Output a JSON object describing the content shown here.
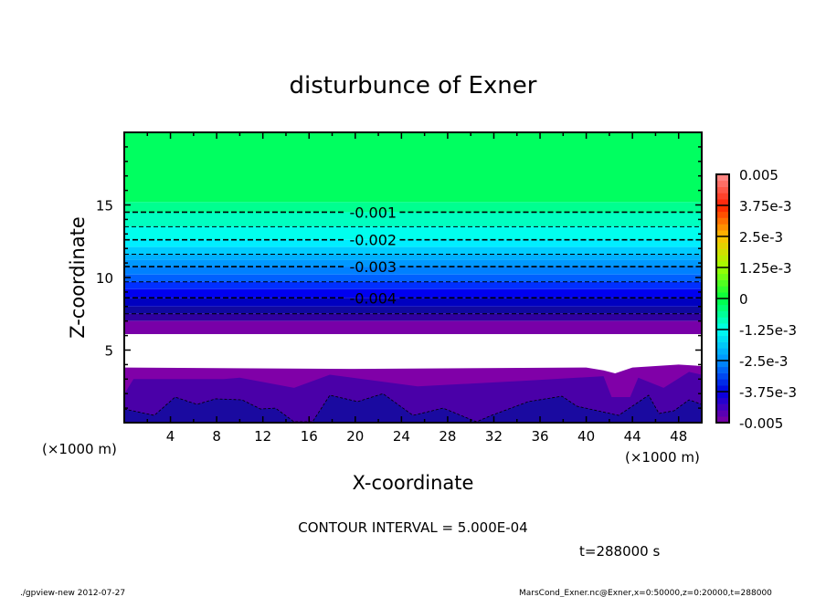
{
  "chart_data": {
    "type": "contour",
    "title": "disturbunce of Exner",
    "xlabel": "X-coordinate",
    "ylabel": "Z-coordinate",
    "x_unit_label": "(×1000 m)",
    "x_unit_label_right": "(×1000 m)",
    "xlim": [
      0,
      50
    ],
    "ylim": [
      0,
      20
    ],
    "x_ticks": [
      4,
      8,
      12,
      16,
      20,
      24,
      28,
      32,
      36,
      40,
      44,
      48
    ],
    "y_ticks": [
      5,
      10,
      15
    ],
    "contour_interval_text": "CONTOUR INTERVAL = 5.000E-04",
    "time_text": "t=288000 s",
    "colorbar": {
      "range": [
        -0.005,
        0.005
      ],
      "step": 0.00025,
      "labels": [
        "0.005",
        "3.75e-3",
        "2.5e-3",
        "1.25e-3",
        "0",
        "-1.25e-3",
        "-2.5e-3",
        "-3.75e-3",
        "-0.005"
      ],
      "label_values": [
        0.005,
        0.00375,
        0.0025,
        0.00125,
        0,
        -0.00125,
        -0.0025,
        -0.00375,
        -0.005
      ],
      "anchor_colors": [
        "#8000a0",
        "#0000e0",
        "#0090ff",
        "#00ffee",
        "#00ff40",
        "#a0ff00",
        "#ffc000",
        "#ff2000",
        "#ff9090"
      ]
    },
    "upper_bands": [
      {
        "z_bottom": 15.2,
        "z_top": 20,
        "color": "#00ff60"
      },
      {
        "z_bottom": 14.5,
        "z_top": 15.2,
        "color": "#00ff90"
      },
      {
        "z_bottom": 13.5,
        "z_top": 14.5,
        "color": "#00ffc0"
      },
      {
        "z_bottom": 12.6,
        "z_top": 13.5,
        "color": "#00ffee"
      },
      {
        "z_bottom": 12.1,
        "z_top": 12.6,
        "color": "#00eeff"
      },
      {
        "z_bottom": 11.6,
        "z_top": 12.1,
        "color": "#00ccff"
      },
      {
        "z_bottom": 11.2,
        "z_top": 11.6,
        "color": "#00b0ff"
      },
      {
        "z_bottom": 10.75,
        "z_top": 11.2,
        "color": "#0098ff"
      },
      {
        "z_bottom": 10.2,
        "z_top": 10.75,
        "color": "#0080ff"
      },
      {
        "z_bottom": 9.7,
        "z_top": 10.2,
        "color": "#0060ff"
      },
      {
        "z_bottom": 9.2,
        "z_top": 9.7,
        "color": "#0030ff"
      },
      {
        "z_bottom": 8.6,
        "z_top": 9.2,
        "color": "#0000f0"
      },
      {
        "z_bottom": 8.0,
        "z_top": 8.6,
        "color": "#0000c0"
      },
      {
        "z_bottom": 7.5,
        "z_top": 8.0,
        "color": "#1008a0"
      },
      {
        "z_bottom": 7.0,
        "z_top": 7.5,
        "color": "#3000a0"
      },
      {
        "z_bottom": 6.1,
        "z_top": 7.0,
        "color": "#7800a8"
      }
    ],
    "missing_region": {
      "z_bottom": 3.8,
      "z_top": 6.1,
      "color": "#ffffff"
    },
    "lower_purple": {
      "color": "#8000a8",
      "top": [
        [
          0,
          3.8
        ],
        [
          20,
          3.7
        ],
        [
          40,
          3.8
        ],
        [
          41.5,
          3.6
        ],
        [
          42.5,
          3.4
        ],
        [
          44,
          3.8
        ],
        [
          48,
          4.0
        ],
        [
          50,
          3.9
        ]
      ]
    },
    "lower_indigo": {
      "color": "#4a00a8",
      "top": [
        [
          0,
          1.97
        ],
        [
          0.8,
          3.0
        ],
        [
          8.6,
          3.0
        ],
        [
          10,
          3.1
        ],
        [
          14.7,
          2.4
        ],
        [
          17.8,
          3.3
        ],
        [
          25.4,
          2.5
        ],
        [
          35,
          2.9
        ],
        [
          41.5,
          3.2
        ],
        [
          42.2,
          1.76
        ],
        [
          43.8,
          1.76
        ],
        [
          44.5,
          3.1
        ],
        [
          46.7,
          2.4
        ],
        [
          48.9,
          3.5
        ],
        [
          50,
          3.3
        ]
      ]
    },
    "lower_navy": {
      "color": "#1a0aa0",
      "top": [
        [
          0,
          0.94
        ],
        [
          2.6,
          0.5
        ],
        [
          4.4,
          1.76
        ],
        [
          6.3,
          1.26
        ],
        [
          7.9,
          1.64
        ],
        [
          10.2,
          1.57
        ],
        [
          11.8,
          0.94
        ],
        [
          13.1,
          1.0
        ],
        [
          14.7,
          0.06
        ],
        [
          16.3,
          0.06
        ],
        [
          17.8,
          1.89
        ],
        [
          20.2,
          1.45
        ],
        [
          22.4,
          2.0
        ],
        [
          25.0,
          0.5
        ],
        [
          27.6,
          1.0
        ],
        [
          30.5,
          0.06
        ],
        [
          31.8,
          0.5
        ],
        [
          35.0,
          1.45
        ],
        [
          37.9,
          1.82
        ],
        [
          39.2,
          1.13
        ],
        [
          42.8,
          0.5
        ],
        [
          45.4,
          1.89
        ],
        [
          46.3,
          0.63
        ],
        [
          47.6,
          0.82
        ],
        [
          48.9,
          1.57
        ],
        [
          50,
          1.26
        ]
      ]
    },
    "contours": [
      {
        "level": -0.001,
        "z": 14.5,
        "label": "-0.001"
      },
      {
        "level": -0.0015,
        "z": 13.5,
        "label": ""
      },
      {
        "level": -0.002,
        "z": 12.6,
        "label": "-0.002"
      },
      {
        "level": -0.0025,
        "z": 11.6,
        "label": ""
      },
      {
        "level": -0.003,
        "z": 10.75,
        "label": "-0.003"
      },
      {
        "level": -0.0035,
        "z": 9.7,
        "label": ""
      },
      {
        "level": -0.004,
        "z": 8.6,
        "label": "-0.004"
      },
      {
        "level": -0.0045,
        "z": 7.5,
        "label": ""
      }
    ],
    "contour_label_x": 19.5
  },
  "footer": {
    "left": "./gpview-new  2012-07-27",
    "right": "MarsCond_Exner.nc@Exner,x=0:50000,z=0:20000,t=288000"
  }
}
